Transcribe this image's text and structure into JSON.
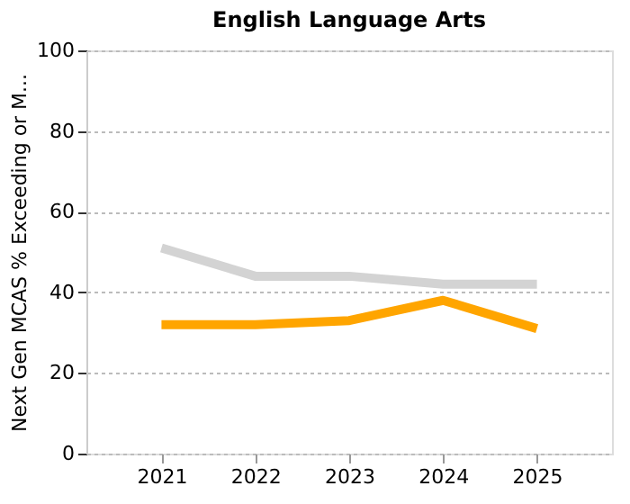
{
  "chart_data": {
    "type": "line",
    "title": "English Language Arts",
    "ylabel": "Next Gen MCAS % Exceeding or M...",
    "categories": [
      "2021",
      "2022",
      "2023",
      "2024",
      "2025"
    ],
    "series": [
      {
        "color": "#d3d3d3",
        "values": [
          51,
          44,
          44,
          42,
          42
        ]
      },
      {
        "color": "#ffa500",
        "values": [
          32,
          32,
          33,
          38,
          31
        ]
      }
    ],
    "ylim": [
      0,
      100
    ],
    "yticks": [
      0,
      20,
      40,
      60,
      80,
      100
    ],
    "grid": "y",
    "marker": "none",
    "line_style": "solid"
  }
}
